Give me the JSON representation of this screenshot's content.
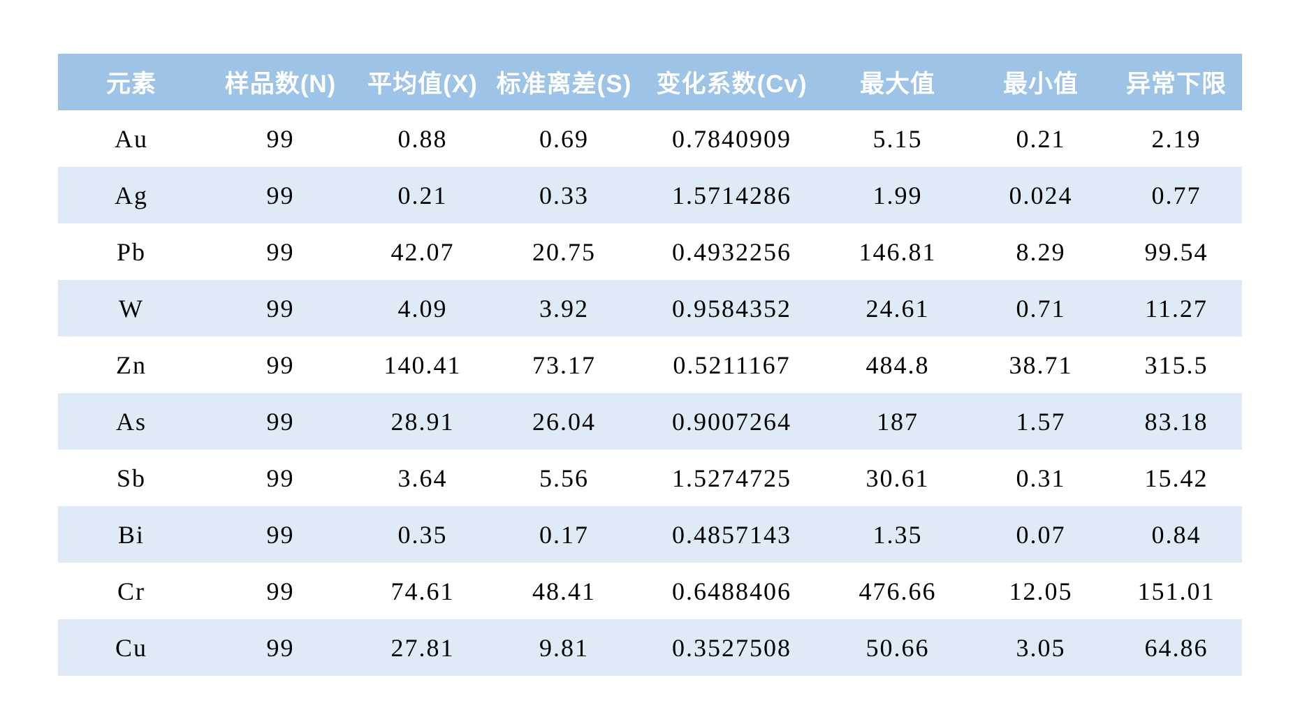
{
  "colors": {
    "header_bg": "#9DC3E6",
    "header_text": "#FFFFFF",
    "band_bg": "#DEEBF7",
    "row_bg": "#FFFFFF",
    "body_text": "#000000",
    "page_bg": "#FFFFFF"
  },
  "chart_data": {
    "type": "table",
    "columns": [
      "元素",
      "样品数(N)",
      "平均值(X)",
      "标准离差(S)",
      "变化系数(Cv)",
      "最大值",
      "最小值",
      "异常下限"
    ],
    "rows": [
      [
        "Au",
        "99",
        "0.88",
        "0.69",
        "0.7840909",
        "5.15",
        "0.21",
        "2.19"
      ],
      [
        "Ag",
        "99",
        "0.21",
        "0.33",
        "1.5714286",
        "1.99",
        "0.024",
        "0.77"
      ],
      [
        "Pb",
        "99",
        "42.07",
        "20.75",
        "0.4932256",
        "146.81",
        "8.29",
        "99.54"
      ],
      [
        "W",
        "99",
        "4.09",
        "3.92",
        "0.9584352",
        "24.61",
        "0.71",
        "11.27"
      ],
      [
        "Zn",
        "99",
        "140.41",
        "73.17",
        "0.5211167",
        "484.8",
        "38.71",
        "315.5"
      ],
      [
        "As",
        "99",
        "28.91",
        "26.04",
        "0.9007264",
        "187",
        "1.57",
        "83.18"
      ],
      [
        "Sb",
        "99",
        "3.64",
        "5.56",
        "1.5274725",
        "30.61",
        "0.31",
        "15.42"
      ],
      [
        "Bi",
        "99",
        "0.35",
        "0.17",
        "0.4857143",
        "1.35",
        "0.07",
        "0.84"
      ],
      [
        "Cr",
        "99",
        "74.61",
        "48.41",
        "0.6488406",
        "476.66",
        "12.05",
        "151.01"
      ],
      [
        "Cu",
        "99",
        "27.81",
        "9.81",
        "0.3527508",
        "50.66",
        "3.05",
        "64.86"
      ]
    ],
    "layout": {
      "banded_rows": true,
      "first_data_row_background": "white",
      "grid": false
    }
  }
}
